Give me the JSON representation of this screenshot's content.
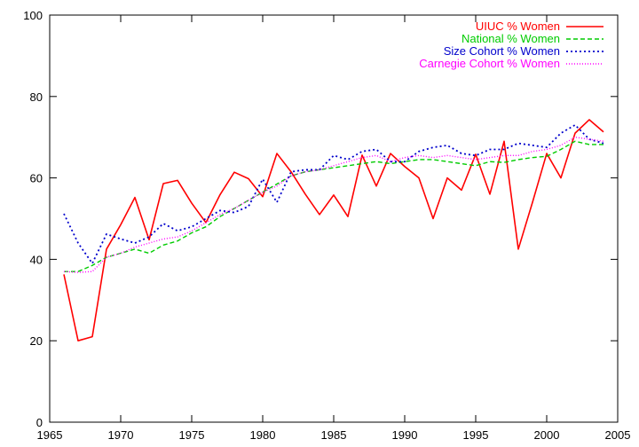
{
  "chart_data": {
    "type": "line",
    "title": "",
    "xlabel": "",
    "ylabel": "",
    "xlim": [
      1965,
      2005
    ],
    "ylim": [
      0,
      100
    ],
    "xticks": [
      1965,
      1970,
      1975,
      1980,
      1985,
      1990,
      1995,
      2000,
      2005
    ],
    "yticks": [
      0,
      20,
      40,
      60,
      80,
      100
    ],
    "xtick_labels": [
      "1965",
      "1970",
      "1975",
      "1980",
      "1985",
      "1990",
      "1995",
      "2000",
      "2005"
    ],
    "ytick_labels": [
      "0",
      "20",
      "40",
      "60",
      "80",
      "100"
    ],
    "grid": false,
    "legend_position": "top-right",
    "x": [
      1966,
      1967,
      1968,
      1969,
      1970,
      1971,
      1972,
      1973,
      1974,
      1975,
      1976,
      1977,
      1978,
      1979,
      1980,
      1981,
      1982,
      1983,
      1984,
      1985,
      1986,
      1987,
      1988,
      1989,
      1990,
      1991,
      1992,
      1993,
      1994,
      1995,
      1996,
      1997,
      1998,
      1999,
      2000,
      2001,
      2002,
      2003,
      2004
    ],
    "series": [
      {
        "name": "UIUC % Women",
        "color": "#ff0000",
        "dash": "solid",
        "values": [
          36.3,
          20.0,
          21.0,
          42.5,
          48.5,
          55.2,
          44.8,
          58.6,
          59.4,
          53.8,
          49.0,
          55.9,
          61.4,
          59.8,
          55.4,
          66.0,
          61.5,
          56.0,
          51.0,
          55.8,
          50.5,
          65.6,
          58.0,
          66.0,
          62.8,
          60.0,
          50.0,
          60.0,
          57.0,
          65.8,
          56.0,
          69.0,
          42.5,
          54.0,
          66.0,
          60.0,
          71.0,
          74.3,
          71.3
        ]
      },
      {
        "name": "National % Women",
        "color": "#00cc00",
        "dash": "dashed",
        "values": [
          37.0,
          37.0,
          38.5,
          40.5,
          41.5,
          42.5,
          41.5,
          43.5,
          44.5,
          46.5,
          48.0,
          50.5,
          52.5,
          54.5,
          56.5,
          58.5,
          60.5,
          61.5,
          62.0,
          62.5,
          63.0,
          63.5,
          64.0,
          63.5,
          64.0,
          64.5,
          64.5,
          64.0,
          63.5,
          63.0,
          64.0,
          63.8,
          64.5,
          65.0,
          65.3,
          67.0,
          69.0,
          68.2,
          68.2
        ]
      },
      {
        "name": "Size Cohort % Women",
        "color": "#0000cc",
        "dash": "dotted",
        "values": [
          51.2,
          44.0,
          39.0,
          46.2,
          45.0,
          44.0,
          45.5,
          48.8,
          47.0,
          48.0,
          50.0,
          52.0,
          51.5,
          53.0,
          59.7,
          54.0,
          61.5,
          62.0,
          62.0,
          65.5,
          64.5,
          66.5,
          67.0,
          64.0,
          64.0,
          66.5,
          67.5,
          68.0,
          66.0,
          65.5,
          67.0,
          67.0,
          68.5,
          68.0,
          67.5,
          71.0,
          73.0,
          69.5,
          68.5
        ]
      },
      {
        "name": "Carnegie Cohort % Women",
        "color": "#ff00ff",
        "dash": "finedot",
        "values": [
          37.0,
          36.8,
          37.0,
          40.5,
          41.5,
          43.0,
          44.0,
          45.0,
          45.5,
          47.0,
          49.0,
          51.0,
          52.5,
          54.5,
          56.5,
          58.0,
          60.5,
          61.5,
          62.0,
          63.0,
          64.0,
          65.0,
          65.5,
          64.0,
          65.0,
          65.5,
          65.0,
          65.5,
          65.0,
          64.5,
          65.0,
          65.5,
          65.5,
          66.5,
          67.0,
          68.0,
          70.0,
          69.5,
          69.0
        ]
      }
    ]
  }
}
